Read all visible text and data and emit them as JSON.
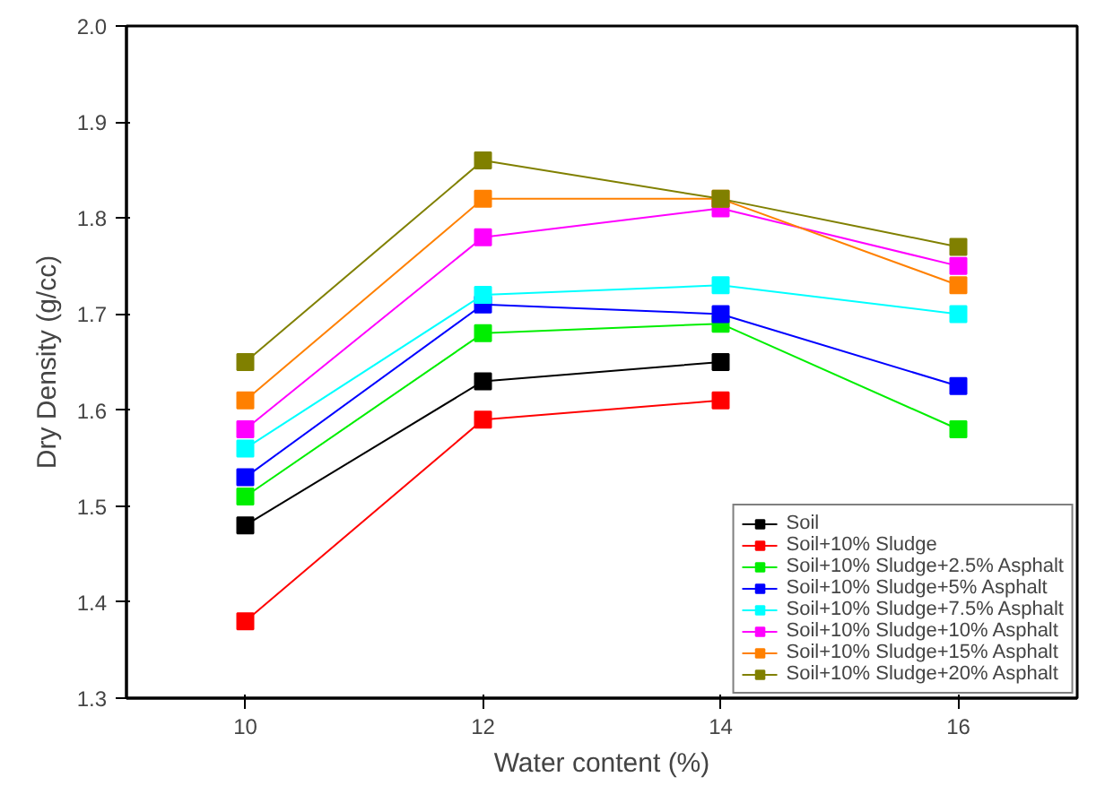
{
  "chart_data": {
    "type": "line",
    "xlabel": "Water content (%)",
    "ylabel": "Dry Density (g/cc)",
    "x": [
      10,
      12,
      14,
      16
    ],
    "xlim": [
      9,
      17
    ],
    "xticks": [
      10,
      12,
      14,
      16
    ],
    "ylim": [
      1.3,
      2.0
    ],
    "yticks": [
      1.3,
      1.4,
      1.5,
      1.6,
      1.7,
      1.8,
      1.9,
      {
        "value": 2,
        "label": "2.0"
      }
    ],
    "grid": false,
    "legend": "bottom right",
    "marker": "square",
    "line_style": "solid",
    "series": [
      {
        "name": "Soil",
        "color": "#000000",
        "values": [
          1.48,
          1.63,
          1.65,
          null
        ]
      },
      {
        "name": "Soil+10% Sludge",
        "color": "#ff0000",
        "values": [
          1.38,
          1.59,
          1.61,
          null
        ]
      },
      {
        "name": "Soil+10% Sludge+2.5% Asphalt",
        "color": "#00ee00",
        "values": [
          1.51,
          1.68,
          1.69,
          1.58
        ]
      },
      {
        "name": "Soil+10% Sludge+5% Asphalt",
        "color": "#0000ff",
        "values": [
          1.53,
          1.71,
          1.7,
          1.625
        ]
      },
      {
        "name": "Soil+10% Sludge+7.5% Asphalt",
        "color": "#00ffff",
        "values": [
          1.56,
          1.72,
          1.73,
          1.7
        ]
      },
      {
        "name": "Soil+10% Sludge+10% Asphalt",
        "color": "#ff00ff",
        "values": [
          1.58,
          1.78,
          1.81,
          1.75
        ]
      },
      {
        "name": "Soil+10% Sludge+15% Asphalt",
        "color": "#ff8000",
        "values": [
          1.61,
          1.82,
          1.82,
          1.73
        ]
      },
      {
        "name": "Soil+10% Sludge+20% Asphalt",
        "color": "#808000",
        "values": [
          1.65,
          1.86,
          1.82,
          1.77
        ]
      }
    ]
  }
}
